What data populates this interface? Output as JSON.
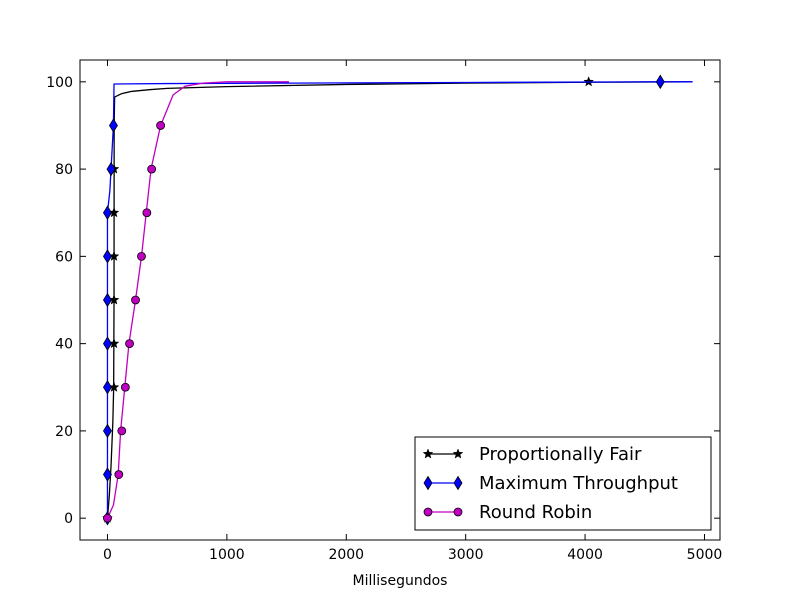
{
  "chart_data": {
    "type": "line",
    "title": "",
    "xlabel": "Millisegundos",
    "ylabel": "",
    "xlim": [
      -230,
      5130
    ],
    "ylim": [
      -5,
      105
    ],
    "x_ticks": [
      0,
      1000,
      2000,
      3000,
      4000,
      5000
    ],
    "y_ticks": [
      0,
      20,
      40,
      60,
      80,
      100
    ],
    "x_tick_labels": [
      "0",
      "1000",
      "2000",
      "3000",
      "4000",
      "5000"
    ],
    "y_tick_labels": [
      "0",
      "20",
      "40",
      "60",
      "80",
      "100"
    ],
    "grid": false,
    "legend": {
      "position": "lower-right"
    },
    "series": [
      {
        "name": "Proportionally Fair",
        "color": "#000000",
        "marker": "star",
        "line": [
          [
            0,
            0
          ],
          [
            15,
            5
          ],
          [
            30,
            12
          ],
          [
            45,
            22
          ],
          [
            52,
            30
          ],
          [
            55,
            50
          ],
          [
            56,
            90
          ],
          [
            60,
            96.5
          ],
          [
            120,
            97.3
          ],
          [
            200,
            97.8
          ],
          [
            350,
            98.2
          ],
          [
            500,
            98.5
          ],
          [
            1000,
            98.9
          ],
          [
            2000,
            99.4
          ],
          [
            3000,
            99.7
          ],
          [
            4030,
            99.9
          ],
          [
            4900,
            100
          ]
        ],
        "markers": [
          [
            0,
            0
          ],
          [
            55,
            30
          ],
          [
            55,
            40
          ],
          [
            55,
            50
          ],
          [
            55,
            60
          ],
          [
            55,
            70
          ],
          [
            55,
            80
          ],
          [
            4030,
            100
          ]
        ]
      },
      {
        "name": "Maximum Throughput",
        "color": "#0000ff",
        "marker": "diamond",
        "line": [
          [
            0,
            0
          ],
          [
            0,
            70
          ],
          [
            20,
            75
          ],
          [
            30,
            80
          ],
          [
            40,
            85
          ],
          [
            50,
            90
          ],
          [
            55,
            99.5
          ],
          [
            500,
            99.6
          ],
          [
            1500,
            99.7
          ],
          [
            3000,
            99.85
          ],
          [
            4630,
            100
          ],
          [
            4900,
            100
          ]
        ],
        "markers": [
          [
            0,
            0
          ],
          [
            0,
            10
          ],
          [
            0,
            20
          ],
          [
            0,
            30
          ],
          [
            0,
            40
          ],
          [
            0,
            50
          ],
          [
            0,
            60
          ],
          [
            0,
            70
          ],
          [
            30,
            80
          ],
          [
            50,
            90
          ],
          [
            4630,
            100
          ]
        ]
      },
      {
        "name": "Round Robin",
        "color": "#c000c0",
        "marker": "circle",
        "line": [
          [
            0,
            0
          ],
          [
            50,
            3
          ],
          [
            90,
            10
          ],
          [
            110,
            20
          ],
          [
            145,
            30
          ],
          [
            180,
            40
          ],
          [
            235,
            50
          ],
          [
            285,
            60
          ],
          [
            325,
            70
          ],
          [
            365,
            80
          ],
          [
            445,
            90
          ],
          [
            550,
            97
          ],
          [
            650,
            99
          ],
          [
            800,
            99.7
          ],
          [
            1000,
            100
          ],
          [
            1520,
            100
          ]
        ],
        "markers": [
          [
            0,
            0
          ],
          [
            95,
            10
          ],
          [
            120,
            20
          ],
          [
            150,
            30
          ],
          [
            185,
            40
          ],
          [
            235,
            50
          ],
          [
            285,
            60
          ],
          [
            330,
            70
          ],
          [
            370,
            80
          ],
          [
            445,
            90
          ]
        ]
      }
    ]
  }
}
